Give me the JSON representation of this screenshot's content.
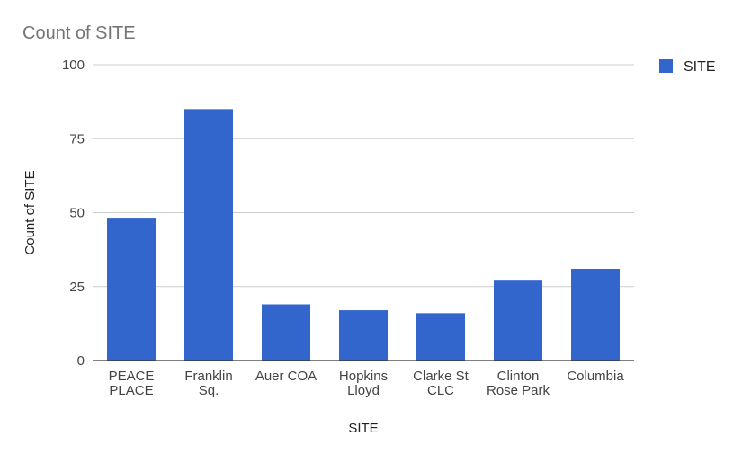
{
  "chart_data": {
    "type": "bar",
    "title": "Count of SITE",
    "xlabel": "SITE",
    "ylabel": "Count of SITE",
    "categories": [
      [
        "PEACE",
        "PLACE"
      ],
      [
        "Franklin",
        "Sq."
      ],
      [
        "Auer COA"
      ],
      [
        "Hopkins",
        "Lloyd"
      ],
      [
        "Clarke St",
        "CLC"
      ],
      [
        "Clinton",
        "Rose Park"
      ],
      [
        "Columbia"
      ]
    ],
    "series": [
      {
        "name": "SITE",
        "values": [
          48,
          85,
          19,
          17,
          16,
          27,
          31
        ],
        "color": "#3366cc"
      }
    ],
    "ylim": [
      0,
      100
    ],
    "yticks": [
      0,
      25,
      50,
      75,
      100
    ],
    "grid": true,
    "legend_position": "right"
  }
}
